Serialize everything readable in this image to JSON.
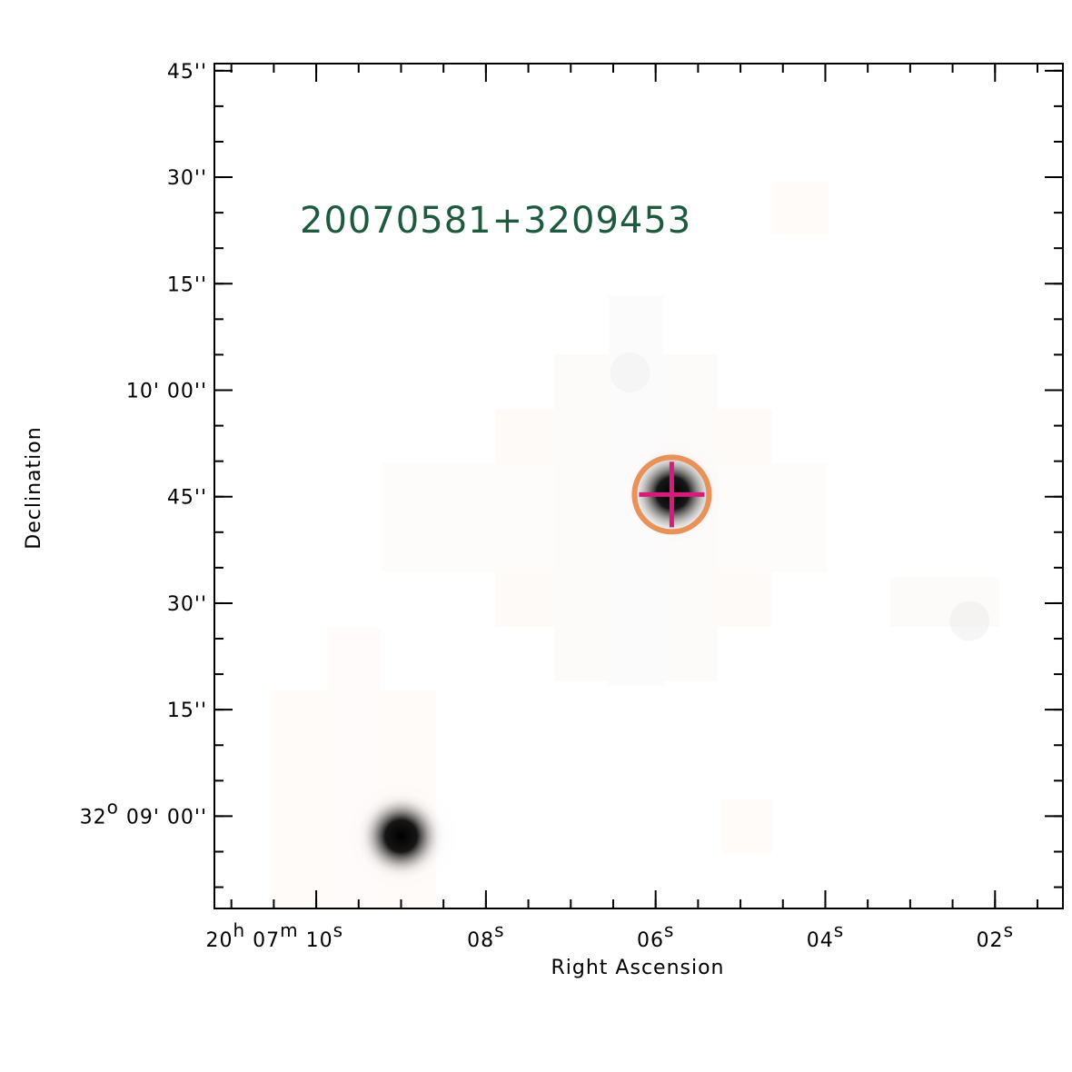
{
  "figure": {
    "source_name": "20070581+3209453",
    "x_axis_label": "Right Ascension",
    "y_axis_label": "Declination",
    "colors": {
      "source_name": "#1e5a3e",
      "circle": "#e8925a",
      "cross": "#d81b7a",
      "frame": "#000000"
    }
  },
  "chart_data": {
    "type": "scatter",
    "title": "20070581+3209453",
    "xlabel": "Right Ascension",
    "ylabel": "Declination",
    "grid": false,
    "x_ticks": [
      {
        "value": 10,
        "label": [
          {
            "t": "20"
          },
          {
            "t": "h",
            "sup": true
          },
          {
            "t": " 07"
          },
          {
            "t": "m",
            "sup": true
          },
          {
            "t": " 10"
          },
          {
            "t": "s",
            "sup": true
          }
        ]
      },
      {
        "value": 8,
        "label": [
          {
            "t": "08"
          },
          {
            "t": "s",
            "sup": true
          }
        ]
      },
      {
        "value": 6,
        "label": [
          {
            "t": "06"
          },
          {
            "t": "s",
            "sup": true
          }
        ]
      },
      {
        "value": 4,
        "label": [
          {
            "t": "04"
          },
          {
            "t": "s",
            "sup": true
          }
        ]
      },
      {
        "value": 2,
        "label": [
          {
            "t": "02"
          },
          {
            "t": "s",
            "sup": true
          }
        ]
      }
    ],
    "y_ticks": [
      {
        "value": 45,
        "label": [
          {
            "t": "45''"
          }
        ]
      },
      {
        "value": 30,
        "label": [
          {
            "t": "30''"
          }
        ]
      },
      {
        "value": 15,
        "label": [
          {
            "t": "15''"
          }
        ]
      },
      {
        "value": 0,
        "label": [
          {
            "t": "10' 00''"
          }
        ]
      },
      {
        "value": -15,
        "label": [
          {
            "t": "45''"
          }
        ]
      },
      {
        "value": -30,
        "label": [
          {
            "t": "30''"
          }
        ]
      },
      {
        "value": -45,
        "label": [
          {
            "t": "15''"
          }
        ]
      },
      {
        "value": -60,
        "label": [
          {
            "t": "32"
          },
          {
            "t": "o",
            "sup": true
          },
          {
            "t": " 09' 00''"
          }
        ]
      }
    ],
    "x_minor_step": 0.5,
    "y_minor_step": 5,
    "xlim": [
      11.2,
      1.2
    ],
    "ylim": [
      -73,
      46
    ],
    "target": {
      "ra_s": 5.81,
      "dec_s": -14.7
    },
    "sources": [
      {
        "ra_s": 5.8,
        "dec_s": -14.5,
        "strength": 1.0
      },
      {
        "ra_s": 9.0,
        "dec_s": -62.8,
        "strength": 0.9
      },
      {
        "ra_s": 2.3,
        "dec_s": -32.5,
        "strength": 0.08
      },
      {
        "ra_s": 6.3,
        "dec_s": 2.5,
        "strength": 0.05
      }
    ]
  }
}
